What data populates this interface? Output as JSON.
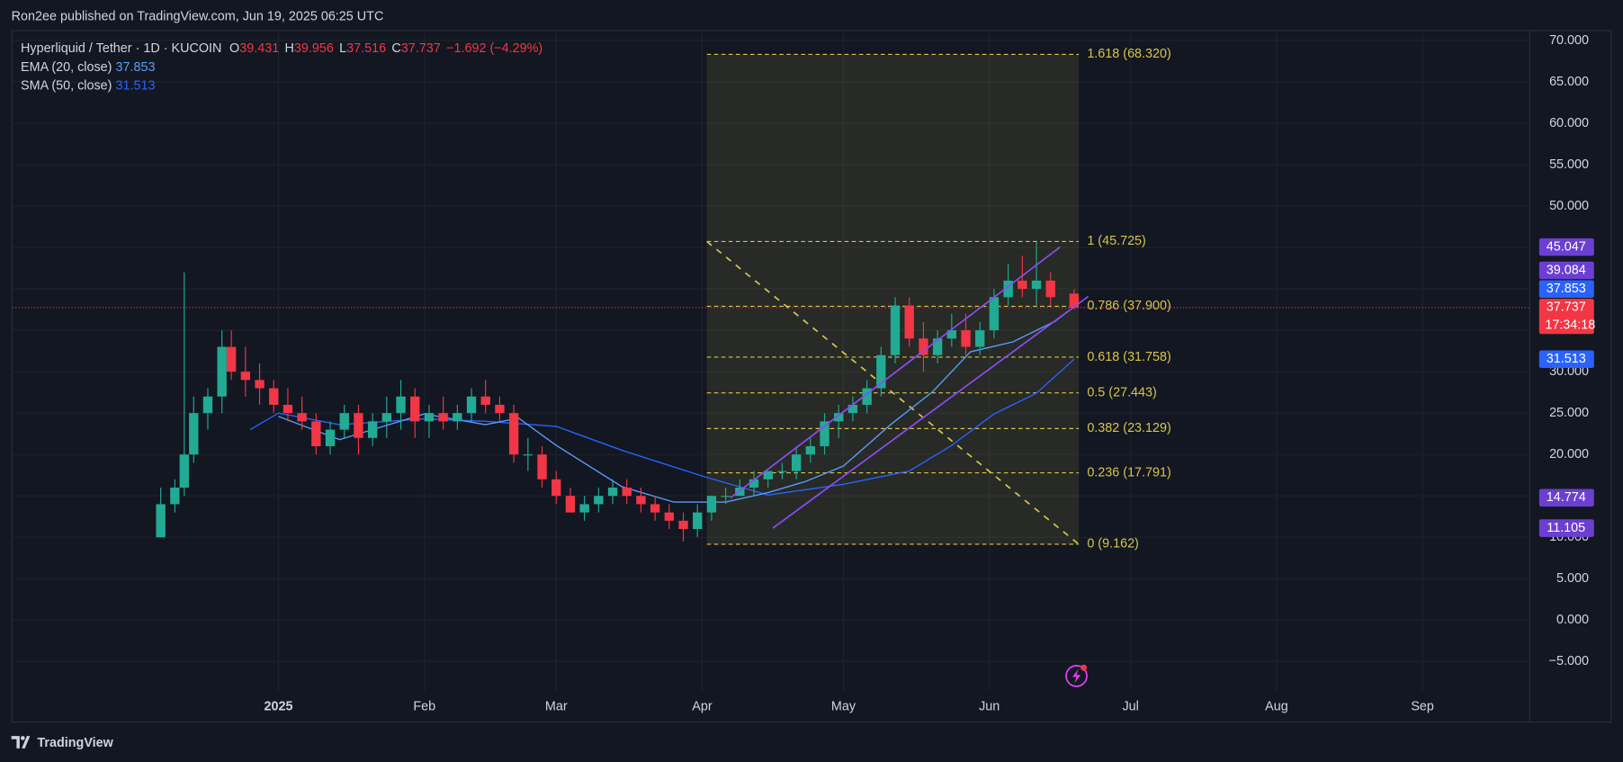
{
  "header": {
    "publisher": "Ron2ee published on TradingView.com, Jun 19, 2025 06:25 UTC",
    "brand": "TradingView"
  },
  "chart_data": {
    "type": "candlestick",
    "title": "Hyperliquid / Tether · 1D · KUCOIN",
    "ohlc_legend": {
      "o_label": "O",
      "o": 39.431,
      "h_label": "H",
      "h": 39.956,
      "l_label": "L",
      "l": 37.516,
      "c_label": "C",
      "c": 37.737,
      "change": "−1.692 (−4.29%)"
    },
    "x": [
      -25,
      -22,
      -20,
      -18,
      -15,
      -12,
      -10,
      -7,
      -4,
      -1,
      2,
      5,
      8,
      11,
      14,
      17,
      20,
      23,
      26,
      29,
      32,
      35,
      38,
      41,
      44,
      47,
      50,
      53,
      56,
      59,
      62,
      65,
      68,
      71,
      74,
      77,
      80,
      83,
      86,
      89,
      92,
      95,
      98,
      101,
      104,
      107,
      110,
      113,
      116,
      119,
      122,
      125,
      128,
      131,
      134,
      137,
      140,
      143,
      146,
      149,
      152,
      155,
      158,
      161,
      164,
      169
    ],
    "open": [
      10,
      14,
      16,
      20,
      25,
      27,
      33,
      30,
      29,
      28,
      26,
      25,
      24,
      21,
      23,
      25,
      22,
      24,
      25,
      27,
      24,
      25,
      24,
      25,
      27,
      26,
      25,
      20,
      20,
      17,
      15,
      13,
      14,
      15,
      16,
      15,
      14,
      13,
      12,
      11,
      13,
      15,
      15,
      16,
      17,
      18,
      18,
      20,
      21,
      24,
      25,
      26,
      28,
      32,
      38,
      34,
      32,
      34,
      35,
      33,
      35,
      39,
      41,
      40,
      41,
      39.431
    ],
    "high": [
      16,
      17,
      42,
      27,
      28,
      35,
      35,
      33,
      31,
      29,
      28,
      27,
      25,
      24,
      26,
      26,
      25,
      27,
      29,
      28,
      26,
      27,
      26,
      28,
      29,
      27,
      26,
      22,
      21,
      18,
      16,
      15,
      16,
      17,
      17,
      16,
      15,
      14,
      13,
      14,
      15,
      16,
      17,
      18,
      18,
      19,
      21,
      22,
      25,
      26,
      27,
      29,
      33,
      39,
      39,
      36,
      35,
      37,
      37,
      36,
      40,
      43,
      44,
      45.7,
      42,
      39.956
    ],
    "low": [
      10,
      13,
      15,
      19,
      23,
      25,
      29,
      27,
      26,
      25,
      24,
      23,
      20,
      20,
      22,
      20,
      21,
      22,
      23,
      22,
      22,
      23,
      23,
      24,
      25,
      24,
      19,
      18,
      16,
      14,
      13,
      12,
      13,
      14,
      14,
      13,
      12,
      11,
      9.5,
      10,
      12,
      14,
      15,
      15,
      16,
      17,
      17,
      19,
      20,
      22,
      24,
      25,
      27,
      31,
      33,
      30,
      31,
      33,
      32,
      32,
      34,
      38,
      39,
      38,
      38,
      37.516
    ],
    "close": [
      14,
      16,
      20,
      25,
      27,
      33,
      30,
      29,
      28,
      26,
      25,
      24,
      21,
      23,
      25,
      22,
      24,
      25,
      27,
      24,
      25,
      24,
      25,
      27,
      26,
      25,
      20,
      20,
      17,
      15,
      13,
      14,
      15,
      16,
      15,
      14,
      13,
      12,
      11,
      13,
      15,
      15,
      16,
      17,
      18,
      18,
      20,
      21,
      24,
      25,
      26,
      28,
      32,
      38,
      34,
      32,
      34,
      35,
      33,
      35,
      39,
      41,
      40,
      41,
      39,
      37.737
    ],
    "up_color": "#22ab94",
    "down_color": "#f23645",
    "ema": {
      "name": "EMA (20, close)",
      "last": 37.853,
      "color": "#5b9cf6",
      "x": [
        0,
        13,
        31,
        44,
        51,
        59,
        73,
        84,
        95,
        104,
        112,
        120,
        130,
        139,
        147,
        156,
        165,
        169
      ],
      "values": [
        24.6,
        21.8,
        24.9,
        23.6,
        24.4,
        21.1,
        16.1,
        14.25,
        14.25,
        15.4,
        16.75,
        18.6,
        23.6,
        27.6,
        32.4,
        33.6,
        36.1,
        37.853
      ]
    },
    "sma": {
      "name": "SMA (50, close)",
      "last": 31.513,
      "color": "#2962ff",
      "x": [
        -6,
        0,
        13,
        31,
        44,
        59,
        73,
        90,
        104,
        120,
        134,
        143,
        152,
        161,
        169
      ],
      "values": [
        23,
        25,
        23.6,
        24.3,
        24,
        23.4,
        20.5,
        17.4,
        15.1,
        16.4,
        18,
        21.1,
        24.9,
        27.4,
        31.513
      ]
    },
    "fib": {
      "x": [
        91,
        170
      ],
      "color": "#d6c44a",
      "levels": [
        68.32,
        45.725,
        37.9,
        31.758,
        27.443,
        23.129,
        17.791,
        9.162
      ],
      "labels": [
        "1.618 (68.320)",
        "1 (45.725)",
        "0.786 (37.900)",
        "0.618 (31.758)",
        "0.5 (27.443)",
        "0.382 (23.129)",
        "0.236 (17.791)",
        "0 (9.162)"
      ]
    },
    "channel": {
      "color": "#8a4cf0",
      "lines": [
        {
          "x": [
            96,
            166
          ],
          "values": [
            14.774,
            45.047
          ]
        },
        {
          "x": [
            105,
            172
          ],
          "values": [
            11.105,
            39.084
          ]
        }
      ]
    },
    "price_tags": [
      {
        "value": 45.047,
        "color": "#6b3fd1"
      },
      {
        "value": 39.084,
        "color": "#6b3fd1"
      },
      {
        "value": 37.853,
        "color": "#2962ff"
      },
      {
        "value": 37.737,
        "color": "#f23645",
        "countdown": "17:34:18"
      },
      {
        "value": 31.513,
        "color": "#2962ff"
      },
      {
        "value": 14.774,
        "color": "#6b3fd1"
      },
      {
        "value": 11.105,
        "color": "#6b3fd1"
      }
    ],
    "current_tag": 3,
    "ylim": [
      -12.25,
      71.125
    ],
    "yticks": [
      {
        "value": 70,
        "label": "70.000"
      },
      {
        "value": 65,
        "label": "65.000"
      },
      {
        "value": 60,
        "label": "60.000"
      },
      {
        "value": 55,
        "label": "55.000"
      },
      {
        "value": 50,
        "label": "50.000"
      },
      {
        "value": 45,
        "label": "45.000"
      },
      {
        "value": 40,
        "label": "40.000"
      },
      {
        "value": 35,
        "label": "35.000"
      },
      {
        "value": 30,
        "label": "30.000"
      },
      {
        "value": 25,
        "label": "25.000"
      },
      {
        "value": 20,
        "label": "20.000"
      },
      {
        "value": 15,
        "label": "15.000"
      },
      {
        "value": 10,
        "label": "10.000"
      },
      {
        "value": 5,
        "label": "5.000"
      },
      {
        "value": 0,
        "label": "0.000"
      },
      {
        "value": -5,
        "label": "−5.000"
      }
    ],
    "xlim": [
      -56.5,
      265.8
    ],
    "xticks": [
      {
        "value": 0,
        "label": "2025"
      },
      {
        "value": 31,
        "label": "Feb"
      },
      {
        "value": 59,
        "label": "Mar"
      },
      {
        "value": 90,
        "label": "Apr"
      },
      {
        "value": 120,
        "label": "May"
      },
      {
        "value": 151,
        "label": "Jun"
      },
      {
        "value": 181,
        "label": "Jul"
      },
      {
        "value": 212,
        "label": "Aug"
      },
      {
        "value": 243,
        "label": "Sep"
      }
    ],
    "grid": true
  }
}
